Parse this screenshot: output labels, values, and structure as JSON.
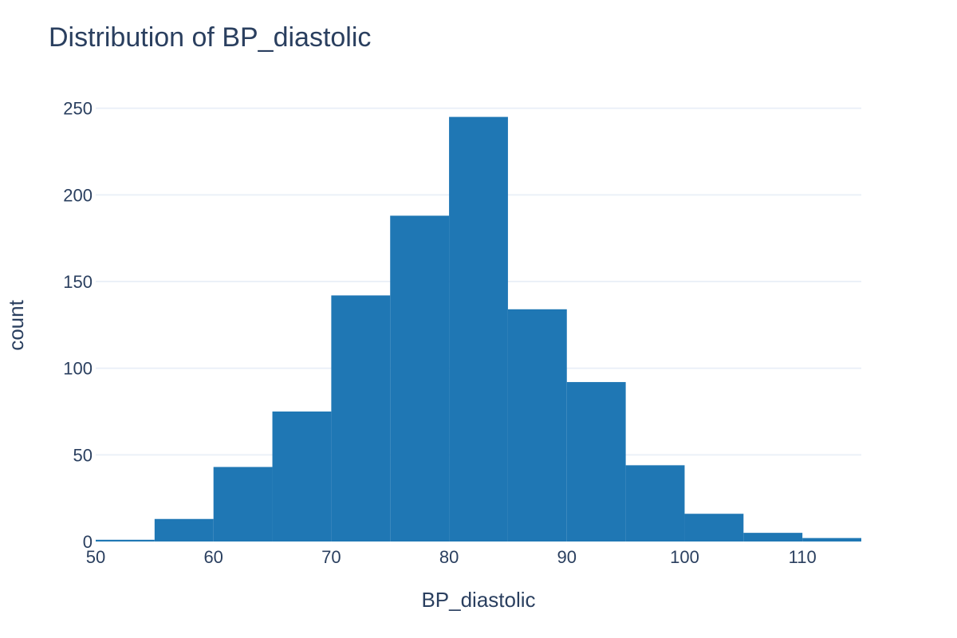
{
  "chart_data": {
    "type": "bar",
    "title": "Distribution of BP_diastolic",
    "xlabel": "BP_diastolic",
    "ylabel": "count",
    "xlim": [
      50,
      115
    ],
    "ylim": [
      0,
      260
    ],
    "x_ticks": [
      50,
      60,
      70,
      80,
      90,
      100,
      110
    ],
    "y_ticks": [
      0,
      50,
      100,
      150,
      200,
      250
    ],
    "grid": true,
    "color": "#1f77b4",
    "bins": [
      {
        "start": 50,
        "end": 55,
        "count": 1
      },
      {
        "start": 55,
        "end": 60,
        "count": 13
      },
      {
        "start": 60,
        "end": 65,
        "count": 43
      },
      {
        "start": 65,
        "end": 70,
        "count": 75
      },
      {
        "start": 70,
        "end": 75,
        "count": 142
      },
      {
        "start": 75,
        "end": 80,
        "count": 188
      },
      {
        "start": 80,
        "end": 85,
        "count": 245
      },
      {
        "start": 85,
        "end": 90,
        "count": 134
      },
      {
        "start": 90,
        "end": 95,
        "count": 92
      },
      {
        "start": 95,
        "end": 100,
        "count": 44
      },
      {
        "start": 100,
        "end": 105,
        "count": 16
      },
      {
        "start": 105,
        "end": 110,
        "count": 5
      },
      {
        "start": 110,
        "end": 115,
        "count": 2
      }
    ]
  }
}
